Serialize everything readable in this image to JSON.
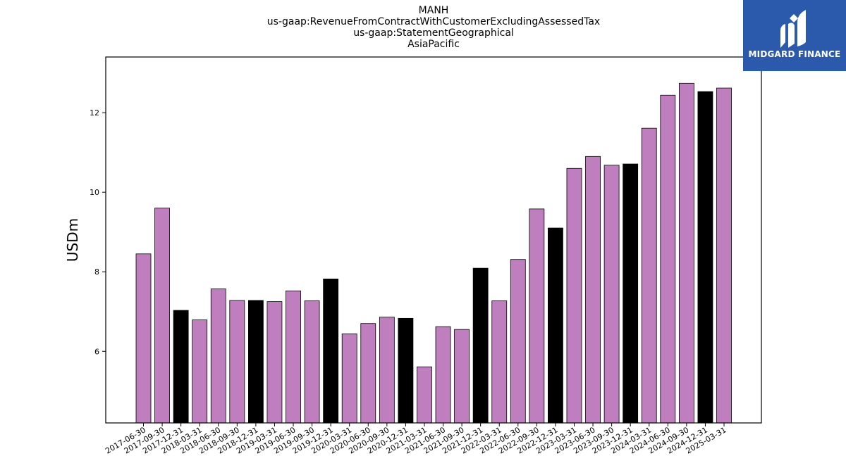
{
  "chart_data": {
    "type": "bar",
    "title_lines": [
      "MANH",
      "us-gaap:RevenueFromContractWithCustomerExcludingAssessedTax",
      "us-gaap:StatementGeographical",
      "AsiaPacific"
    ],
    "xlabel": "",
    "ylabel": "USDm",
    "ylim": [
      4.2,
      13.4
    ],
    "yticks": [
      6,
      8,
      10,
      12
    ],
    "grid": false,
    "categories": [
      "2017-06-30",
      "2017-09-30",
      "2017-12-31",
      "2018-03-31",
      "2018-06-30",
      "2018-09-30",
      "2018-12-31",
      "2019-03-31",
      "2019-06-30",
      "2019-09-30",
      "2019-12-31",
      "2020-03-31",
      "2020-06-30",
      "2020-09-30",
      "2020-12-31",
      "2021-03-31",
      "2021-06-30",
      "2021-09-30",
      "2021-12-31",
      "2022-03-31",
      "2022-06-30",
      "2022-09-30",
      "2022-12-31",
      "2023-03-31",
      "2023-06-30",
      "2023-09-30",
      "2023-12-31",
      "2024-03-31",
      "2024-06-30",
      "2024-09-30",
      "2024-12-31",
      "2025-03-31"
    ],
    "values": [
      8.45,
      9.6,
      7.03,
      6.79,
      7.57,
      7.28,
      7.28,
      7.25,
      7.52,
      7.27,
      7.82,
      6.44,
      6.7,
      6.86,
      6.83,
      5.61,
      6.62,
      6.55,
      8.09,
      7.27,
      8.31,
      9.58,
      9.1,
      10.6,
      10.9,
      10.68,
      10.71,
      11.61,
      12.44,
      12.74,
      12.53,
      12.62
    ],
    "bar_colors": [
      "#bf7fbf",
      "#bf7fbf",
      "#000000",
      "#bf7fbf",
      "#bf7fbf",
      "#bf7fbf",
      "#000000",
      "#bf7fbf",
      "#bf7fbf",
      "#bf7fbf",
      "#000000",
      "#bf7fbf",
      "#bf7fbf",
      "#bf7fbf",
      "#000000",
      "#bf7fbf",
      "#bf7fbf",
      "#bf7fbf",
      "#000000",
      "#bf7fbf",
      "#bf7fbf",
      "#bf7fbf",
      "#000000",
      "#bf7fbf",
      "#bf7fbf",
      "#bf7fbf",
      "#000000",
      "#bf7fbf",
      "#bf7fbf",
      "#bf7fbf",
      "#000000",
      "#bf7fbf"
    ]
  },
  "logo": {
    "text": "MIDGARD FINANCE",
    "bg_color": "#2b5aad"
  }
}
